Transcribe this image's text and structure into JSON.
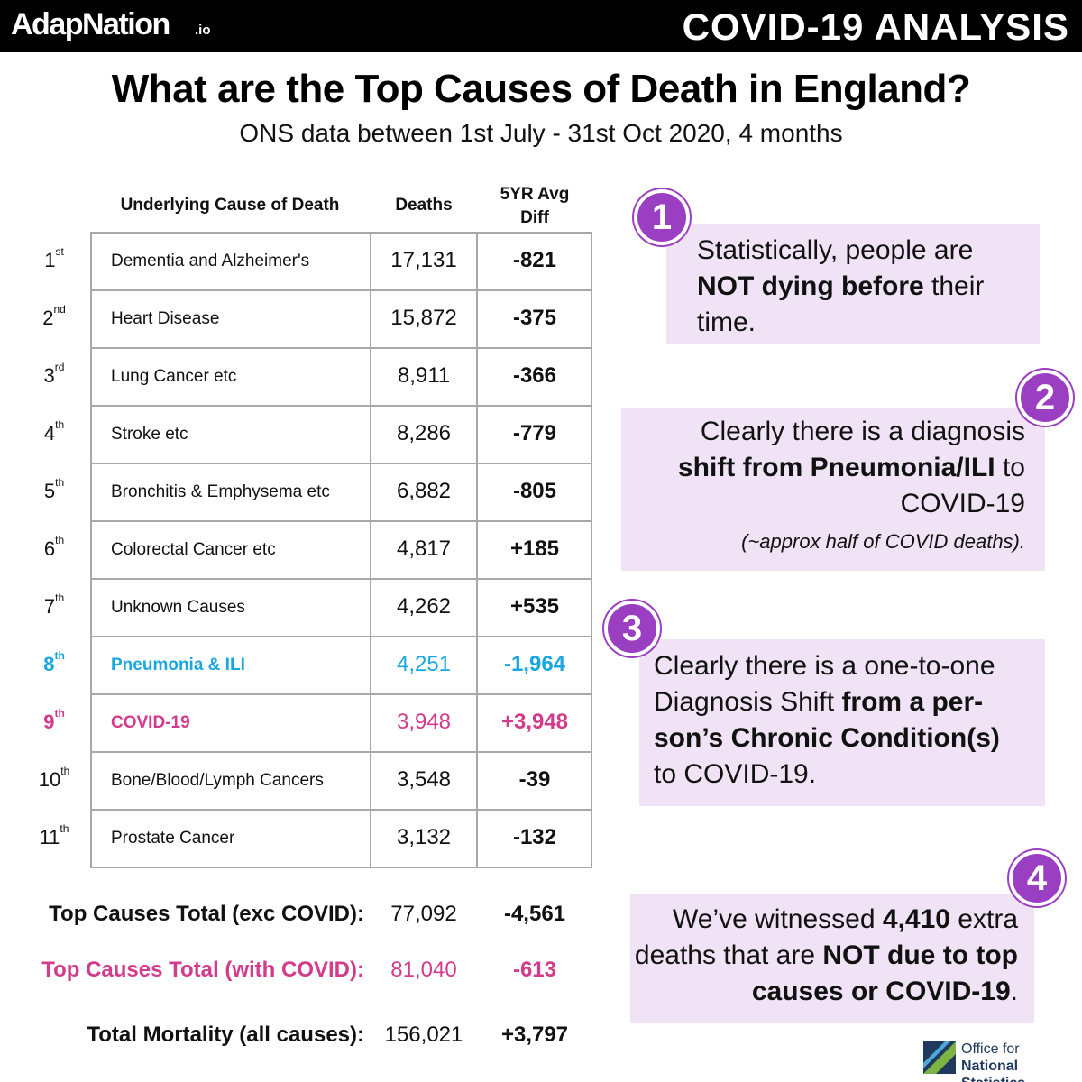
{
  "header": {
    "brand": "AdapNation",
    "brand_suffix": ".io",
    "right_title": "COVID-19 ANALYSIS"
  },
  "title": "What are the Top Causes of Death in England?",
  "subtitle": "ONS data between 1st July - 31st Oct 2020, 4 months",
  "table": {
    "columns": {
      "cause": "Underlying Cause of Death",
      "deaths": "Deaths",
      "diff_line1": "5YR Avg",
      "diff_line2": "Diff"
    },
    "rows": [
      {
        "rank": "1",
        "suffix": "st",
        "cause": "Dementia and Alzheimer's",
        "deaths": "17,131",
        "diff": "-821",
        "highlight": ""
      },
      {
        "rank": "2",
        "suffix": "nd",
        "cause": "Heart Disease",
        "deaths": "15,872",
        "diff": "-375",
        "highlight": ""
      },
      {
        "rank": "3",
        "suffix": "rd",
        "cause": "Lung Cancer etc",
        "deaths": "8,911",
        "diff": "-366",
        "highlight": ""
      },
      {
        "rank": "4",
        "suffix": "th",
        "cause": "Stroke etc",
        "deaths": "8,286",
        "diff": "-779",
        "highlight": ""
      },
      {
        "rank": "5",
        "suffix": "th",
        "cause": "Bronchitis & Emphysema etc",
        "deaths": "6,882",
        "diff": "-805",
        "highlight": ""
      },
      {
        "rank": "6",
        "suffix": "th",
        "cause": "Colorectal Cancer etc",
        "deaths": "4,817",
        "diff": "+185",
        "highlight": ""
      },
      {
        "rank": "7",
        "suffix": "th",
        "cause": "Unknown Causes",
        "deaths": "4,262",
        "diff": "+535",
        "highlight": ""
      },
      {
        "rank": "8",
        "suffix": "th",
        "cause": "Pneumonia & ILI",
        "deaths": "4,251",
        "diff": "-1,964",
        "highlight": "blue"
      },
      {
        "rank": "9",
        "suffix": "th",
        "cause": "COVID-19",
        "deaths": "3,948",
        "diff": "+3,948",
        "highlight": "pink"
      },
      {
        "rank": "10",
        "suffix": "th",
        "cause": "Bone/Blood/Lymph Cancers",
        "deaths": "3,548",
        "diff": "-39",
        "highlight": ""
      },
      {
        "rank": "11",
        "suffix": "th",
        "cause": "Prostate Cancer",
        "deaths": "3,132",
        "diff": "-132",
        "highlight": ""
      }
    ]
  },
  "totals": [
    {
      "label": "Top Causes Total (exc COVID):",
      "deaths": "77,092",
      "diff": "-4,561",
      "highlight": ""
    },
    {
      "label": "Top Causes Total (with COVID):",
      "deaths": "81,040",
      "diff": "-613",
      "highlight": "pink"
    },
    {
      "label": "Total Mortality (all causes):",
      "deaths": "156,021",
      "diff": "+3,797",
      "highlight": ""
    }
  ],
  "notes": [
    {
      "number": "1",
      "html": "Statistically, people are <b>NOT dying before</b> their time."
    },
    {
      "number": "2",
      "html": "Clearly there is a diagnosis <b>shift from Pneumonia/ILI</b> to COVID-19<br><span style=\"font-size:22px;font-style:italic;\">(~approx half of COVID deaths).</span>"
    },
    {
      "number": "3",
      "html": "Clearly there is a one-to-one Diagnosis Shift <b>from a per-son’s Chronic Condition(s)</b> to COVID-19."
    },
    {
      "number": "4",
      "html": "We’ve witnessed <b>4,410</b> extra deaths that are <b>NOT due to top causes or COVID-19</b>."
    }
  ],
  "footer": {
    "ons_line1": "Office for",
    "ons_line2": "National Statistics"
  },
  "colors": {
    "blue": "#1aa7df",
    "pink": "#d33b8b",
    "purple": "#9b3fc2",
    "note_bg": "#efe3f5"
  },
  "chart_data": {
    "type": "table",
    "title": "What are the Top Causes of Death in England?",
    "subtitle": "ONS data between 1st July - 31st Oct 2020, 4 months",
    "columns": [
      "Underlying Cause of Death",
      "Deaths",
      "5YR Avg Diff"
    ],
    "rows": [
      [
        "Dementia and Alzheimer's",
        17131,
        -821
      ],
      [
        "Heart Disease",
        15872,
        -375
      ],
      [
        "Lung Cancer etc",
        8911,
        -366
      ],
      [
        "Stroke etc",
        8286,
        -779
      ],
      [
        "Bronchitis & Emphysema etc",
        6882,
        -805
      ],
      [
        "Colorectal Cancer etc",
        4817,
        185
      ],
      [
        "Unknown Causes",
        4262,
        535
      ],
      [
        "Pneumonia & ILI",
        4251,
        -1964
      ],
      [
        "COVID-19",
        3948,
        3948
      ],
      [
        "Bone/Blood/Lymph Cancers",
        3548,
        -39
      ],
      [
        "Prostate Cancer",
        3132,
        -132
      ]
    ],
    "totals": [
      [
        "Top Causes Total (exc COVID):",
        77092,
        -4561
      ],
      [
        "Top Causes Total (with COVID):",
        81040,
        -613
      ],
      [
        "Total Mortality (all causes):",
        156021,
        3797
      ]
    ]
  }
}
